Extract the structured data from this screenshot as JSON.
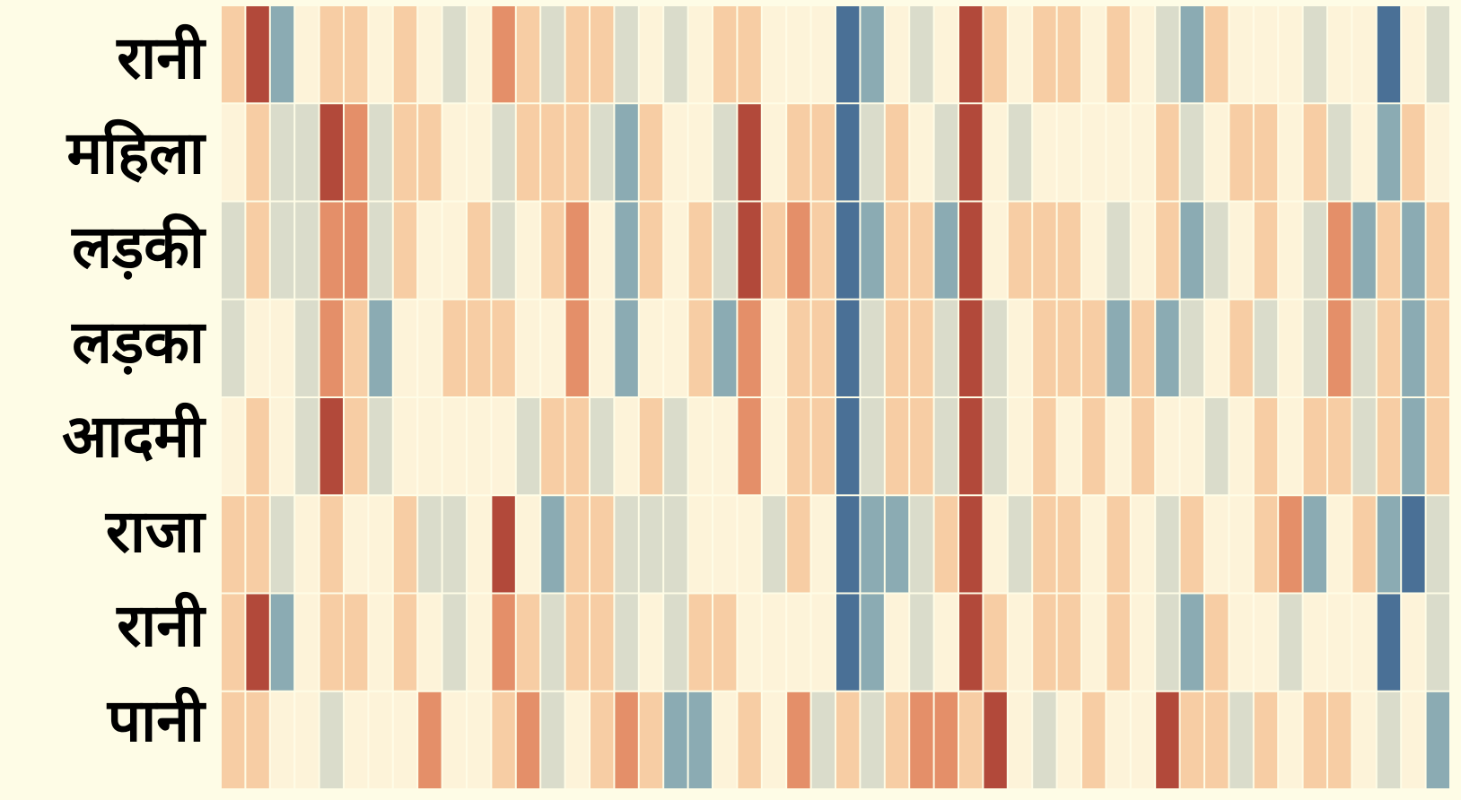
{
  "chart_data": {
    "type": "heatmap",
    "rows": [
      "रानी",
      "महिला",
      "लड़की",
      "लड़का",
      "आदमी",
      "राजा",
      "रानी",
      "पानी"
    ],
    "columns": 50,
    "value_scale": {
      "-3": "#4a7096",
      "-2": "#8babb3",
      "-1": "#dadccb",
      "0": "#fdf3d9",
      "1": "#f7cda4",
      "2": "#e48f69",
      "3": "#b2493a"
    },
    "values": [
      [
        1,
        3,
        -2,
        0,
        1,
        1,
        0,
        1,
        0,
        -1,
        0,
        2,
        1,
        -1,
        1,
        1,
        -1,
        0,
        -1,
        0,
        1,
        1,
        0,
        0,
        0,
        -3,
        -2,
        0,
        -1,
        0,
        3,
        1,
        0,
        1,
        1,
        0,
        1,
        0,
        -1,
        -2,
        1,
        0,
        0,
        0,
        -1,
        0,
        0,
        -3,
        0,
        -1
      ],
      [
        0,
        1,
        -1,
        -1,
        3,
        2,
        -1,
        1,
        1,
        0,
        0,
        -1,
        1,
        1,
        1,
        -1,
        -2,
        1,
        0,
        0,
        -1,
        3,
        0,
        1,
        1,
        -3,
        -1,
        1,
        0,
        -1,
        3,
        0,
        -1,
        0,
        0,
        0,
        0,
        0,
        1,
        -1,
        0,
        1,
        1,
        0,
        1,
        -1,
        0,
        -2,
        1,
        0
      ],
      [
        -1,
        1,
        -1,
        -1,
        2,
        2,
        -1,
        1,
        0,
        0,
        1,
        -1,
        0,
        1,
        2,
        0,
        -2,
        1,
        0,
        1,
        -1,
        3,
        1,
        2,
        1,
        -3,
        -2,
        1,
        1,
        -2,
        3,
        0,
        1,
        1,
        1,
        0,
        -1,
        0,
        1,
        -2,
        -1,
        0,
        1,
        0,
        -1,
        2,
        -2,
        1,
        -2,
        1
      ],
      [
        -1,
        0,
        0,
        -1,
        2,
        1,
        -2,
        0,
        0,
        1,
        1,
        1,
        0,
        0,
        2,
        0,
        -2,
        0,
        0,
        1,
        -2,
        2,
        0,
        1,
        1,
        -3,
        -1,
        1,
        1,
        -1,
        3,
        -1,
        0,
        1,
        1,
        1,
        -2,
        1,
        -2,
        -1,
        0,
        1,
        -1,
        0,
        -1,
        2,
        -1,
        1,
        -2,
        1
      ],
      [
        0,
        1,
        0,
        -1,
        3,
        1,
        -1,
        0,
        0,
        0,
        0,
        0,
        -1,
        1,
        1,
        -1,
        0,
        1,
        -1,
        0,
        0,
        2,
        0,
        1,
        1,
        -3,
        -1,
        1,
        1,
        -1,
        3,
        -1,
        0,
        1,
        0,
        1,
        0,
        1,
        0,
        0,
        -1,
        0,
        1,
        0,
        1,
        1,
        -1,
        1,
        -2,
        1
      ],
      [
        1,
        1,
        -1,
        0,
        1,
        0,
        0,
        1,
        -1,
        -1,
        0,
        3,
        0,
        -2,
        1,
        1,
        -1,
        -1,
        -1,
        0,
        0,
        0,
        -1,
        1,
        0,
        -3,
        -2,
        -2,
        -1,
        1,
        3,
        0,
        -1,
        1,
        1,
        0,
        1,
        0,
        -1,
        1,
        0,
        0,
        1,
        2,
        -2,
        0,
        1,
        -2,
        -3,
        -1
      ],
      [
        1,
        3,
        -2,
        0,
        1,
        1,
        0,
        1,
        0,
        -1,
        0,
        2,
        1,
        -1,
        1,
        1,
        -1,
        0,
        -1,
        1,
        1,
        0,
        0,
        0,
        0,
        -3,
        -2,
        0,
        -1,
        0,
        3,
        1,
        0,
        1,
        1,
        0,
        1,
        0,
        -1,
        -2,
        1,
        0,
        0,
        -1,
        0,
        0,
        0,
        -3,
        0,
        -1
      ],
      [
        1,
        1,
        0,
        0,
        -1,
        0,
        0,
        0,
        2,
        0,
        0,
        1,
        2,
        -1,
        0,
        1,
        2,
        1,
        -2,
        -2,
        0,
        1,
        0,
        2,
        -1,
        1,
        -1,
        1,
        2,
        2,
        1,
        3,
        0,
        -1,
        0,
        1,
        0,
        0,
        3,
        1,
        1,
        -1,
        1,
        0,
        1,
        1,
        0,
        -1,
        0,
        -2
      ]
    ]
  }
}
